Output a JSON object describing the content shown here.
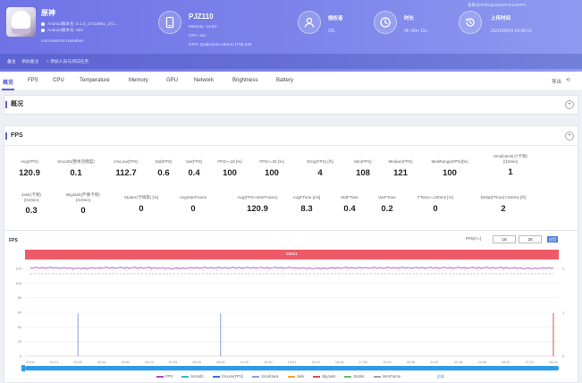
{
  "header": {
    "app": {
      "name": "原神",
      "version_line": "Android版本名: 5.1.0_27110891_272...",
      "build_line": "Android版本号: 903",
      "package": "com.miHoYo.Yuanshen"
    },
    "device": {
      "name": "PJZ110",
      "memory": "Memory: 14.0G",
      "cpu": "CPU: sun",
      "gpu": "GPU: Qualcomm Adreno (TM) 830"
    },
    "stats": [
      {
        "title": "授权者",
        "value": "20L"
      },
      {
        "title": "时长",
        "value": "0h 30m 11s"
      },
      {
        "title": "上传时间",
        "value": "25/10/2024 18:08:16"
      }
    ],
    "top_right": "查看@PerfDog/2024/PJZ110FPS",
    "note_label": "备注",
    "note_text": "添加备注",
    "note_extra": "+ 添加人员与测试任务"
  },
  "tabs": [
    "概览",
    "FPS",
    "CPU",
    "Temperature",
    "Memory",
    "GPU",
    "Network",
    "Brightness",
    "Battery"
  ],
  "tab_tools": {
    "left": "导出",
    "right": "⟲"
  },
  "sections": {
    "overview": "概况",
    "fps": "FPS"
  },
  "fps_metrics_row1": [
    {
      "label": "Avg(FPS)",
      "value": "120.9"
    },
    {
      "label": "Smooth(整体流畅度)",
      "value": "0.1"
    },
    {
      "label": "1%Low(FPS)",
      "value": "112.7"
    },
    {
      "label": "Std(FPS)",
      "value": "0.6"
    },
    {
      "label": "Var(FPS)",
      "value": "0.4"
    },
    {
      "label": "FPS>=18 [%]",
      "value": "100"
    },
    {
      "label": "FPS>=25 [%]",
      "value": "100"
    },
    {
      "label": "Drop(FPS) [/h]",
      "value": "4"
    },
    {
      "label": "Min(FPS)",
      "value": "108"
    },
    {
      "label": "Median(FPS)",
      "value": "121"
    },
    {
      "label": "MedRange(FPS)[%]",
      "value": "100"
    },
    {
      "label": "SmallJank(小卡顿)\n(/10min)",
      "value": "1"
    }
  ],
  "fps_metrics_row2": [
    {
      "label": "Jank(卡顿)\n(/10min)",
      "value": "0.3"
    },
    {
      "label": "BigJank(严重卡顿)\n(/10min)",
      "value": "0"
    },
    {
      "label": "Stutter(卡顿率) [%]",
      "value": "0"
    },
    {
      "label": "AvgInterFrame",
      "value": "0"
    },
    {
      "label": "Avg(FPS+InterFrame)",
      "value": "120.9"
    },
    {
      "label": "AvgFTime [ms]",
      "value": "8.3"
    },
    {
      "label": "StdFTime",
      "value": "0.4"
    },
    {
      "label": "VarFTime",
      "value": "0.2"
    },
    {
      "label": "FTime>=100ms [%]",
      "value": "0"
    },
    {
      "label": "Delta(FTime)>100ms [/h]",
      "value": "2"
    }
  ],
  "chart": {
    "label": "FPS",
    "fps_filter_label": "FPS(>=)",
    "fps_filter_min": "18",
    "fps_filter_max": "25",
    "apply_label": "应用",
    "event_bar": "label1",
    "y_left_ticks": [
      "120",
      "100",
      "80",
      "60",
      "40",
      "20",
      "0"
    ],
    "y_right_ticks": [
      "2",
      "1",
      "0"
    ],
    "x_ticks": [
      "00:00",
      "01:21",
      "02:02",
      "02:44",
      "03:32",
      "04:24",
      "07:05",
      "08:26",
      "09:48",
      "11:09",
      "12:30",
      "13:51",
      "15:12",
      "16:33",
      "17:54",
      "19:15",
      "20:36",
      "21:57",
      "23:18",
      "24:39",
      "26:00",
      "27:21",
      "28:42"
    ],
    "legend": [
      {
        "name": "FPS",
        "color": "#b043c8"
      },
      {
        "name": "Smooth",
        "color": "#2fb9c9"
      },
      {
        "name": "1%Low(FPS)",
        "color": "#3a6fe0"
      },
      {
        "name": "SmallJank",
        "color": "#8ea0d8"
      },
      {
        "name": "Jank",
        "color": "#f2a33a"
      },
      {
        "name": "BigJank",
        "color": "#e24b4b"
      },
      {
        "name": "Stutter",
        "color": "#6fb96f"
      },
      {
        "name": "InterFrame",
        "color": "#a3a3a3"
      }
    ],
    "zoom_label": "全部"
  },
  "chart_data": {
    "type": "line",
    "title": "FPS",
    "x": [
      "00:00",
      "01:21",
      "02:02",
      "02:44",
      "03:32",
      "04:24",
      "07:05",
      "08:26",
      "09:48",
      "11:09",
      "12:30",
      "13:51",
      "15:12",
      "16:33",
      "17:54",
      "19:15",
      "20:36",
      "21:57",
      "23:18",
      "24:39",
      "26:00",
      "27:21",
      "28:42"
    ],
    "series": [
      {
        "name": "FPS",
        "values": [
          121,
          121,
          120,
          121,
          121,
          121,
          120,
          121,
          121,
          121,
          121,
          121,
          120,
          121,
          121,
          121,
          121,
          121,
          121,
          121,
          121,
          120,
          121
        ]
      }
    ],
    "jank_markers_at": [
      "02:02",
      "09:48",
      "28:42"
    ],
    "ylim": [
      0,
      120
    ]
  }
}
